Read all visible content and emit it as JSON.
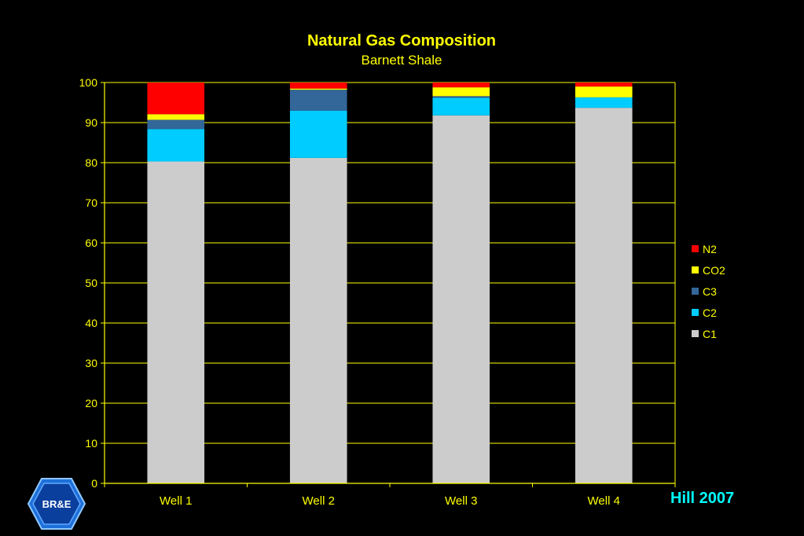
{
  "chart_data": {
    "type": "stacked-bar",
    "title": "Natural Gas Composition",
    "subtitle": "Barnett Shale",
    "categories": [
      "Well 1",
      "Well 2",
      "Well 3",
      "Well 4"
    ],
    "ylim": [
      0,
      100
    ],
    "yticks": [
      0,
      10,
      20,
      30,
      40,
      50,
      60,
      70,
      80,
      90,
      100
    ],
    "grid": true,
    "legend_position": "right",
    "series": [
      {
        "name": "C1",
        "color": "#cccccc",
        "values": [
          80.3,
          81.2,
          91.8,
          93.7
        ]
      },
      {
        "name": "C2",
        "color": "#00ccff",
        "values": [
          8.1,
          11.8,
          4.4,
          2.6
        ]
      },
      {
        "name": "C3",
        "color": "#336699",
        "values": [
          2.3,
          5.2,
          0.4,
          0.0
        ]
      },
      {
        "name": "CO2",
        "color": "#ffff00",
        "values": [
          1.4,
          0.3,
          2.2,
          2.7
        ]
      },
      {
        "name": "N2",
        "color": "#ff0000",
        "values": [
          7.9,
          1.5,
          1.2,
          1.0
        ]
      }
    ],
    "colors": {
      "axis": "#ffff00",
      "title": "#ffff00",
      "subtitle": "#ffff00"
    }
  },
  "citation": "Hill 2007",
  "logo": {
    "text": "BR&E",
    "icon": "hexagon-logo"
  }
}
